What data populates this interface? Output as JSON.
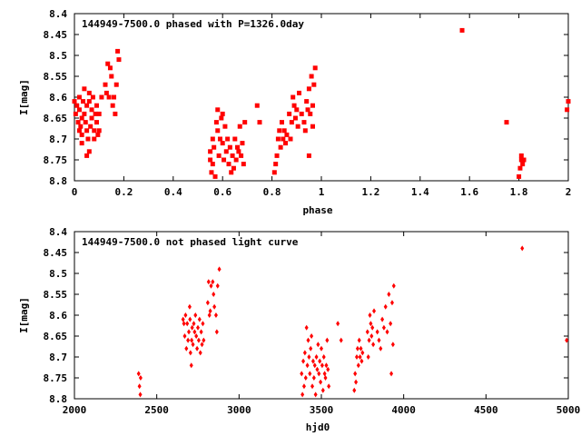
{
  "chart_data": [
    {
      "type": "scatter",
      "title": "144949-7500.0 phased with P=1326.0day",
      "xlabel": "phase",
      "ylabel": "I[mag]",
      "xlim": [
        0,
        2
      ],
      "ylim": [
        8.8,
        8.4
      ],
      "y_inverted": true,
      "grid": false,
      "marker": "filled-square",
      "color": "#ff0000",
      "x_ticks": [
        "0",
        "0.2",
        "0.4",
        "0.6",
        "0.8",
        "1",
        "1.2",
        "1.4",
        "1.6",
        "1.8",
        "2"
      ],
      "y_ticks": [
        "8.4",
        "8.45",
        "8.5",
        "8.55",
        "8.6",
        "8.65",
        "8.7",
        "8.75",
        "8.8"
      ],
      "points": [
        [
          0.0,
          8.61
        ],
        [
          0.005,
          8.64
        ],
        [
          0.01,
          8.62
        ],
        [
          0.015,
          8.66
        ],
        [
          0.02,
          8.6
        ],
        [
          0.02,
          8.63
        ],
        [
          0.025,
          8.67
        ],
        [
          0.03,
          8.65
        ],
        [
          0.03,
          8.69
        ],
        [
          0.035,
          8.61
        ],
        [
          0.04,
          8.58
        ],
        [
          0.04,
          8.64
        ],
        [
          0.045,
          8.66
        ],
        [
          0.05,
          8.62
        ],
        [
          0.05,
          8.68
        ],
        [
          0.055,
          8.7
        ],
        [
          0.06,
          8.59
        ],
        [
          0.06,
          8.73
        ],
        [
          0.065,
          8.67
        ],
        [
          0.07,
          8.63
        ],
        [
          0.07,
          8.65
        ],
        [
          0.075,
          8.6
        ],
        [
          0.08,
          8.68
        ],
        [
          0.085,
          8.64
        ],
        [
          0.09,
          8.66
        ],
        [
          0.09,
          8.62
        ],
        [
          0.095,
          8.69
        ],
        [
          0.1,
          8.68
        ],
        [
          0.1,
          8.64
        ],
        [
          0.11,
          8.6
        ],
        [
          0.02,
          8.68
        ],
        [
          0.03,
          8.71
        ],
        [
          0.05,
          8.74
        ],
        [
          0.06,
          8.61
        ],
        [
          0.08,
          8.7
        ],
        [
          0.125,
          8.57
        ],
        [
          0.13,
          8.59
        ],
        [
          0.135,
          8.52
        ],
        [
          0.14,
          8.6
        ],
        [
          0.145,
          8.53
        ],
        [
          0.15,
          8.55
        ],
        [
          0.155,
          8.62
        ],
        [
          0.16,
          8.6
        ],
        [
          0.165,
          8.64
        ],
        [
          0.17,
          8.57
        ],
        [
          0.175,
          8.49
        ],
        [
          0.18,
          8.51
        ],
        [
          0.55,
          8.73
        ],
        [
          0.55,
          8.75
        ],
        [
          0.555,
          8.78
        ],
        [
          0.56,
          8.7
        ],
        [
          0.56,
          8.76
        ],
        [
          0.565,
          8.72
        ],
        [
          0.57,
          8.79
        ],
        [
          0.575,
          8.66
        ],
        [
          0.58,
          8.63
        ],
        [
          0.58,
          8.68
        ],
        [
          0.585,
          8.74
        ],
        [
          0.59,
          8.7
        ],
        [
          0.595,
          8.65
        ],
        [
          0.6,
          8.64
        ],
        [
          0.6,
          8.71
        ],
        [
          0.605,
          8.75
        ],
        [
          0.61,
          8.67
        ],
        [
          0.615,
          8.73
        ],
        [
          0.62,
          8.7
        ],
        [
          0.625,
          8.76
        ],
        [
          0.63,
          8.72
        ],
        [
          0.635,
          8.78
        ],
        [
          0.64,
          8.74
        ],
        [
          0.645,
          8.77
        ],
        [
          0.65,
          8.7
        ],
        [
          0.655,
          8.75
        ],
        [
          0.66,
          8.72
        ],
        [
          0.665,
          8.73
        ],
        [
          0.67,
          8.67
        ],
        [
          0.675,
          8.74
        ],
        [
          0.68,
          8.71
        ],
        [
          0.685,
          8.76
        ],
        [
          0.69,
          8.66
        ],
        [
          0.74,
          8.62
        ],
        [
          0.75,
          8.66
        ],
        [
          0.81,
          8.78
        ],
        [
          0.815,
          8.76
        ],
        [
          0.82,
          8.74
        ],
        [
          0.825,
          8.7
        ],
        [
          0.83,
          8.68
        ],
        [
          0.835,
          8.72
        ],
        [
          0.84,
          8.66
        ],
        [
          0.845,
          8.7
        ],
        [
          0.85,
          8.68
        ],
        [
          0.855,
          8.71
        ],
        [
          0.86,
          8.69
        ],
        [
          0.87,
          8.64
        ],
        [
          0.875,
          8.7
        ],
        [
          0.88,
          8.66
        ],
        [
          0.885,
          8.6
        ],
        [
          0.89,
          8.62
        ],
        [
          0.895,
          8.65
        ],
        [
          0.9,
          8.63
        ],
        [
          0.905,
          8.67
        ],
        [
          0.91,
          8.59
        ],
        [
          0.92,
          8.64
        ],
        [
          0.93,
          8.66
        ],
        [
          0.935,
          8.68
        ],
        [
          0.94,
          8.61
        ],
        [
          0.945,
          8.63
        ],
        [
          0.95,
          8.58
        ],
        [
          0.955,
          8.64
        ],
        [
          0.96,
          8.55
        ],
        [
          0.965,
          8.62
        ],
        [
          0.97,
          8.57
        ],
        [
          0.975,
          8.53
        ],
        [
          0.965,
          8.67
        ],
        [
          0.95,
          8.74
        ],
        [
          1.57,
          8.44
        ],
        [
          1.75,
          8.66
        ],
        [
          1.8,
          8.79
        ],
        [
          1.805,
          8.77
        ],
        [
          1.81,
          8.75
        ],
        [
          1.81,
          8.74
        ],
        [
          1.815,
          8.76
        ],
        [
          1.82,
          8.75
        ],
        [
          2.0,
          8.61
        ],
        [
          1.995,
          8.63
        ]
      ]
    },
    {
      "type": "scatter",
      "title": "144949-7500.0 not phased light curve",
      "xlabel": "hjd0",
      "ylabel": "I[mag]",
      "xlim": [
        2000,
        5000
      ],
      "ylim": [
        8.8,
        8.4
      ],
      "y_inverted": true,
      "grid": false,
      "marker": "filled-diamond",
      "color": "#ff0000",
      "x_ticks": [
        "2000",
        "2500",
        "3000",
        "3500",
        "4000",
        "4500",
        "5000"
      ],
      "y_ticks": [
        "8.4",
        "8.45",
        "8.5",
        "8.55",
        "8.6",
        "8.65",
        "8.7",
        "8.75",
        "8.8"
      ],
      "points": [
        [
          2390,
          8.74
        ],
        [
          2395,
          8.77
        ],
        [
          2400,
          8.79
        ],
        [
          2402,
          8.75
        ],
        [
          2660,
          8.61
        ],
        [
          2665,
          8.62
        ],
        [
          2670,
          8.65
        ],
        [
          2675,
          8.6
        ],
        [
          2680,
          8.68
        ],
        [
          2685,
          8.62
        ],
        [
          2690,
          8.66
        ],
        [
          2695,
          8.64
        ],
        [
          2700,
          8.58
        ],
        [
          2702,
          8.61
        ],
        [
          2705,
          8.69
        ],
        [
          2710,
          8.72
        ],
        [
          2712,
          8.66
        ],
        [
          2715,
          8.63
        ],
        [
          2720,
          8.67
        ],
        [
          2725,
          8.62
        ],
        [
          2730,
          8.64
        ],
        [
          2735,
          8.6
        ],
        [
          2740,
          8.65
        ],
        [
          2745,
          8.68
        ],
        [
          2750,
          8.63
        ],
        [
          2755,
          8.66
        ],
        [
          2760,
          8.61
        ],
        [
          2765,
          8.69
        ],
        [
          2770,
          8.64
        ],
        [
          2775,
          8.67
        ],
        [
          2780,
          8.62
        ],
        [
          2785,
          8.66
        ],
        [
          2810,
          8.57
        ],
        [
          2815,
          8.52
        ],
        [
          2820,
          8.6
        ],
        [
          2825,
          8.59
        ],
        [
          2830,
          8.53
        ],
        [
          2840,
          8.52
        ],
        [
          2845,
          8.55
        ],
        [
          2850,
          8.58
        ],
        [
          2860,
          8.6
        ],
        [
          2865,
          8.64
        ],
        [
          2870,
          8.53
        ],
        [
          2880,
          8.49
        ],
        [
          3380,
          8.74
        ],
        [
          3385,
          8.79
        ],
        [
          3390,
          8.71
        ],
        [
          3395,
          8.77
        ],
        [
          3400,
          8.69
        ],
        [
          3405,
          8.75
        ],
        [
          3410,
          8.63
        ],
        [
          3415,
          8.72
        ],
        [
          3420,
          8.66
        ],
        [
          3425,
          8.7
        ],
        [
          3430,
          8.74
        ],
        [
          3435,
          8.68
        ],
        [
          3440,
          8.65
        ],
        [
          3445,
          8.77
        ],
        [
          3450,
          8.71
        ],
        [
          3455,
          8.75
        ],
        [
          3460,
          8.72
        ],
        [
          3465,
          8.79
        ],
        [
          3470,
          8.7
        ],
        [
          3475,
          8.73
        ],
        [
          3480,
          8.67
        ],
        [
          3485,
          8.74
        ],
        [
          3490,
          8.71
        ],
        [
          3495,
          8.76
        ],
        [
          3500,
          8.68
        ],
        [
          3505,
          8.72
        ],
        [
          3510,
          8.78
        ],
        [
          3515,
          8.7
        ],
        [
          3520,
          8.74
        ],
        [
          3525,
          8.75
        ],
        [
          3530,
          8.72
        ],
        [
          3535,
          8.66
        ],
        [
          3540,
          8.73
        ],
        [
          3545,
          8.77
        ],
        [
          3600,
          8.62
        ],
        [
          3620,
          8.66
        ],
        [
          3700,
          8.78
        ],
        [
          3705,
          8.74
        ],
        [
          3710,
          8.76
        ],
        [
          3715,
          8.7
        ],
        [
          3720,
          8.68
        ],
        [
          3725,
          8.72
        ],
        [
          3730,
          8.66
        ],
        [
          3735,
          8.7
        ],
        [
          3740,
          8.68
        ],
        [
          3745,
          8.71
        ],
        [
          3750,
          8.69
        ],
        [
          3780,
          8.64
        ],
        [
          3785,
          8.7
        ],
        [
          3790,
          8.66
        ],
        [
          3795,
          8.6
        ],
        [
          3800,
          8.62
        ],
        [
          3805,
          8.65
        ],
        [
          3810,
          8.63
        ],
        [
          3815,
          8.67
        ],
        [
          3820,
          8.59
        ],
        [
          3840,
          8.64
        ],
        [
          3850,
          8.66
        ],
        [
          3860,
          8.68
        ],
        [
          3870,
          8.61
        ],
        [
          3880,
          8.63
        ],
        [
          3890,
          8.58
        ],
        [
          3900,
          8.64
        ],
        [
          3910,
          8.55
        ],
        [
          3920,
          8.62
        ],
        [
          3925,
          8.74
        ],
        [
          3930,
          8.57
        ],
        [
          3935,
          8.67
        ],
        [
          3940,
          8.53
        ],
        [
          4720,
          8.44
        ],
        [
          4990,
          8.66
        ]
      ]
    }
  ]
}
